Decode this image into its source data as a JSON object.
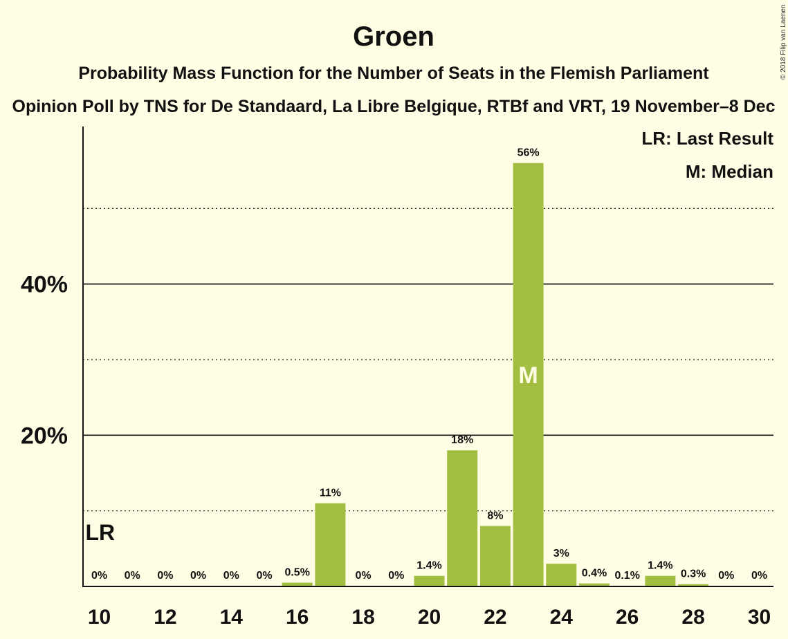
{
  "title": "Groen",
  "subtitle": "Probability Mass Function for the Number of Seats in the Flemish Parliament",
  "poll": "Opinion Poll by TNS for De Standaard, La Libre Belgique, RTBf and VRT, 19 November–8 Dec",
  "copyright": "© 2018 Filip van Laenen",
  "legend": {
    "last_result": "LR: Last Result",
    "median": "M: Median"
  },
  "markers": {
    "last_result_label": "LR",
    "median_label": "M"
  },
  "colors": {
    "bar": "#A2BF42",
    "background": "#FFFEE5",
    "text": "#111111"
  },
  "chart_data": {
    "type": "bar",
    "x": [
      10,
      11,
      12,
      13,
      14,
      15,
      16,
      17,
      18,
      19,
      20,
      21,
      22,
      23,
      24,
      25,
      26,
      27,
      28,
      29,
      30
    ],
    "values": [
      0,
      0,
      0,
      0,
      0,
      0,
      0.5,
      11,
      0,
      0,
      1.4,
      18,
      8,
      56,
      3,
      0.4,
      0.1,
      1.4,
      0.3,
      0,
      0
    ],
    "labels": [
      "0%",
      "0%",
      "0%",
      "0%",
      "0%",
      "0%",
      "0.5%",
      "11%",
      "0%",
      "0%",
      "1.4%",
      "18%",
      "8%",
      "56%",
      "3%",
      "0.4%",
      "0.1%",
      "1.4%",
      "0.3%",
      "0%",
      "0%"
    ],
    "xticks": [
      "10",
      "12",
      "14",
      "16",
      "18",
      "20",
      "22",
      "24",
      "26",
      "28",
      "30"
    ],
    "yticks": [
      "20%",
      "40%"
    ],
    "ylim": [
      0,
      60
    ],
    "last_result_seat": 10,
    "median_seat": 23,
    "grid": true,
    "legend_position": "top-right"
  }
}
